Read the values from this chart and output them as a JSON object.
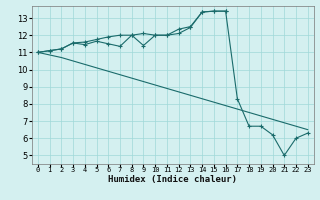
{
  "xlabel": "Humidex (Indice chaleur)",
  "bg_color": "#d4f0f0",
  "grid_color": "#a0d8d8",
  "line_color": "#1a6b6b",
  "xlim": [
    -0.5,
    23.5
  ],
  "ylim": [
    4.5,
    13.7
  ],
  "xticks": [
    0,
    1,
    2,
    3,
    4,
    5,
    6,
    7,
    8,
    9,
    10,
    11,
    12,
    13,
    14,
    15,
    16,
    17,
    18,
    19,
    20,
    21,
    22,
    23
  ],
  "yticks": [
    5,
    6,
    7,
    8,
    9,
    10,
    11,
    12,
    13
  ],
  "line1_x": [
    0,
    1,
    2,
    3,
    4,
    5,
    6,
    7,
    8,
    9,
    10,
    11,
    12,
    13,
    14,
    15,
    16,
    17,
    18,
    19,
    20,
    21,
    22,
    23
  ],
  "line1_y": [
    11.0,
    11.1,
    11.2,
    11.55,
    11.6,
    11.75,
    11.9,
    12.0,
    12.0,
    12.1,
    12.0,
    12.0,
    12.35,
    12.5,
    13.35,
    13.4,
    13.4,
    8.3,
    6.7,
    6.7,
    6.2,
    5.0,
    6.0,
    6.3
  ],
  "line2_x": [
    0,
    1,
    2,
    3,
    4,
    5,
    6,
    7,
    8,
    9,
    10,
    11,
    12,
    13,
    14,
    15,
    16
  ],
  "line2_y": [
    11.0,
    11.1,
    11.2,
    11.55,
    11.45,
    11.65,
    11.5,
    11.35,
    12.0,
    11.4,
    12.0,
    12.0,
    12.1,
    12.45,
    13.35,
    13.4,
    13.4
  ],
  "line3_x": [
    0,
    1,
    2,
    3,
    4,
    5,
    6,
    7,
    8,
    9,
    10,
    11,
    12,
    13,
    14,
    15,
    16,
    17,
    18,
    19,
    20,
    21,
    22,
    23
  ],
  "line3_y": [
    11.0,
    10.85,
    10.7,
    10.5,
    10.3,
    10.1,
    9.9,
    9.7,
    9.5,
    9.3,
    9.1,
    8.9,
    8.7,
    8.5,
    8.3,
    8.1,
    7.9,
    7.7,
    7.5,
    7.3,
    7.1,
    6.9,
    6.7,
    6.5
  ]
}
